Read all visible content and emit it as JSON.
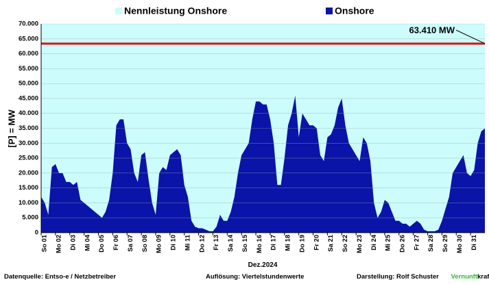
{
  "chart_data": {
    "type": "area",
    "xlabel": "Dez.2024",
    "ylabel": "[P] = MW",
    "annotation": {
      "text": "63.410 MW",
      "x": 31,
      "y": 63410
    },
    "footer": {
      "source": "Datenquelle:  Entso-e  / Netzbetreiber",
      "resolution": "Auflösung: Viertelstundenwerte",
      "author": "Darstellung:  Rolf Schuster",
      "brand_a": "Vernunft",
      "brand_b": "kraft"
    },
    "xlim": [
      0,
      31
    ],
    "ylim": [
      0,
      70000
    ],
    "yticks": [
      {
        "value": 0,
        "label": "0"
      },
      {
        "value": 5000,
        "label": "5.000"
      },
      {
        "value": 10000,
        "label": "10.000"
      },
      {
        "value": 15000,
        "label": "15.000"
      },
      {
        "value": 20000,
        "label": "20.000"
      },
      {
        "value": 25000,
        "label": "25.000"
      },
      {
        "value": 30000,
        "label": "30.000"
      },
      {
        "value": 35000,
        "label": "35.000"
      },
      {
        "value": 40000,
        "label": "40.000"
      },
      {
        "value": 45000,
        "label": "45.000"
      },
      {
        "value": 50000,
        "label": "50.000"
      },
      {
        "value": 55000,
        "label": "55.000"
      },
      {
        "value": 60000,
        "label": "60.000"
      },
      {
        "value": 65000,
        "label": "65.000"
      },
      {
        "value": 70000,
        "label": "70.000"
      }
    ],
    "xticks": [
      {
        "value": 0,
        "label": "So 01"
      },
      {
        "value": 1,
        "label": "Mo 02"
      },
      {
        "value": 2,
        "label": "Di 03"
      },
      {
        "value": 3,
        "label": "Mi 04"
      },
      {
        "value": 4,
        "label": "Do 05"
      },
      {
        "value": 5,
        "label": "Fr 06"
      },
      {
        "value": 6,
        "label": "Sa 07"
      },
      {
        "value": 7,
        "label": "So 08"
      },
      {
        "value": 8,
        "label": "Mo 09"
      },
      {
        "value": 9,
        "label": "Di 10"
      },
      {
        "value": 10,
        "label": "Mi 11"
      },
      {
        "value": 11,
        "label": "Do 12"
      },
      {
        "value": 12,
        "label": "Fr 13"
      },
      {
        "value": 13,
        "label": "Sa 14"
      },
      {
        "value": 14,
        "label": "So 15"
      },
      {
        "value": 15,
        "label": "Mo 16"
      },
      {
        "value": 16,
        "label": "Di 17"
      },
      {
        "value": 17,
        "label": "Mi 18"
      },
      {
        "value": 18,
        "label": "Do 19"
      },
      {
        "value": 19,
        "label": "Fr 20"
      },
      {
        "value": 20,
        "label": "Sa 21"
      },
      {
        "value": 21,
        "label": "So 22"
      },
      {
        "value": 22,
        "label": "Mo 23"
      },
      {
        "value": 23,
        "label": "Di 24"
      },
      {
        "value": 24,
        "label": "Mi 25"
      },
      {
        "value": 25,
        "label": "Do 26"
      },
      {
        "value": 26,
        "label": "Fr 27"
      },
      {
        "value": 27,
        "label": "Sa 28"
      },
      {
        "value": 28,
        "label": "So 29"
      },
      {
        "value": 29,
        "label": "Mo 30"
      },
      {
        "value": 30,
        "label": "Di 31"
      }
    ],
    "grid": true,
    "series": [
      {
        "name": "Nennleistung Onshore",
        "color": "#ccfcfc",
        "line_color": "#e01010",
        "x": [
          0,
          31
        ],
        "values": [
          63410,
          63410
        ]
      },
      {
        "name": "Onshore",
        "color": "#0a14a8",
        "x": [
          0,
          0.25,
          0.5,
          0.75,
          1,
          1.25,
          1.5,
          1.75,
          2,
          2.25,
          2.5,
          2.75,
          3,
          3.25,
          3.5,
          3.75,
          4,
          4.25,
          4.5,
          4.75,
          5,
          5.25,
          5.5,
          5.75,
          6,
          6.25,
          6.5,
          6.75,
          7,
          7.25,
          7.5,
          7.75,
          8,
          8.25,
          8.5,
          8.75,
          9,
          9.25,
          9.5,
          9.75,
          10,
          10.25,
          10.5,
          10.75,
          11,
          11.25,
          11.5,
          11.75,
          12,
          12.25,
          12.5,
          12.75,
          13,
          13.25,
          13.5,
          13.75,
          14,
          14.25,
          14.5,
          14.75,
          15,
          15.25,
          15.5,
          15.75,
          16,
          16.25,
          16.5,
          16.75,
          17,
          17.25,
          17.5,
          17.75,
          18,
          18.25,
          18.5,
          18.75,
          19,
          19.25,
          19.5,
          19.75,
          20,
          20.25,
          20.5,
          20.75,
          21,
          21.25,
          21.5,
          21.75,
          22,
          22.25,
          22.5,
          22.75,
          23,
          23.25,
          23.5,
          23.75,
          24,
          24.25,
          24.5,
          24.75,
          25,
          25.25,
          25.5,
          25.75,
          26,
          26.25,
          26.5,
          26.75,
          27,
          27.25,
          27.5,
          27.75,
          28,
          28.25,
          28.5,
          28.75,
          29,
          29.25,
          29.5,
          29.75,
          30,
          30.25,
          30.5,
          30.75,
          31
        ],
        "values": [
          12000,
          10000,
          6000,
          22000,
          23000,
          20000,
          20000,
          17000,
          17000,
          16000,
          17000,
          11000,
          10000,
          9000,
          8000,
          7000,
          6000,
          5000,
          7000,
          11000,
          20000,
          36000,
          38000,
          38000,
          30000,
          28000,
          20000,
          17000,
          26000,
          27000,
          18000,
          10000,
          6000,
          20000,
          22000,
          21000,
          26000,
          27000,
          28000,
          26000,
          16000,
          12000,
          4000,
          2000,
          1500,
          1500,
          1000,
          500,
          500,
          2000,
          6000,
          4000,
          4000,
          7000,
          12000,
          20000,
          26000,
          28000,
          30000,
          38000,
          44000,
          44000,
          43000,
          43000,
          38000,
          30000,
          16000,
          16000,
          25000,
          36000,
          40000,
          46000,
          32000,
          40000,
          38000,
          36000,
          36000,
          35000,
          26000,
          24000,
          32000,
          33000,
          36000,
          42000,
          45000,
          36000,
          30000,
          28000,
          26000,
          24000,
          32000,
          30000,
          24000,
          10000,
          5000,
          7000,
          11000,
          10000,
          7000,
          4000,
          4000,
          3000,
          3000,
          2000,
          3000,
          4000,
          3000,
          1000,
          500,
          500,
          500,
          1000,
          4000,
          8000,
          12000,
          20000,
          22000,
          24000,
          26000,
          20000,
          19000,
          21000,
          30000,
          34000,
          35000
        ]
      }
    ]
  }
}
